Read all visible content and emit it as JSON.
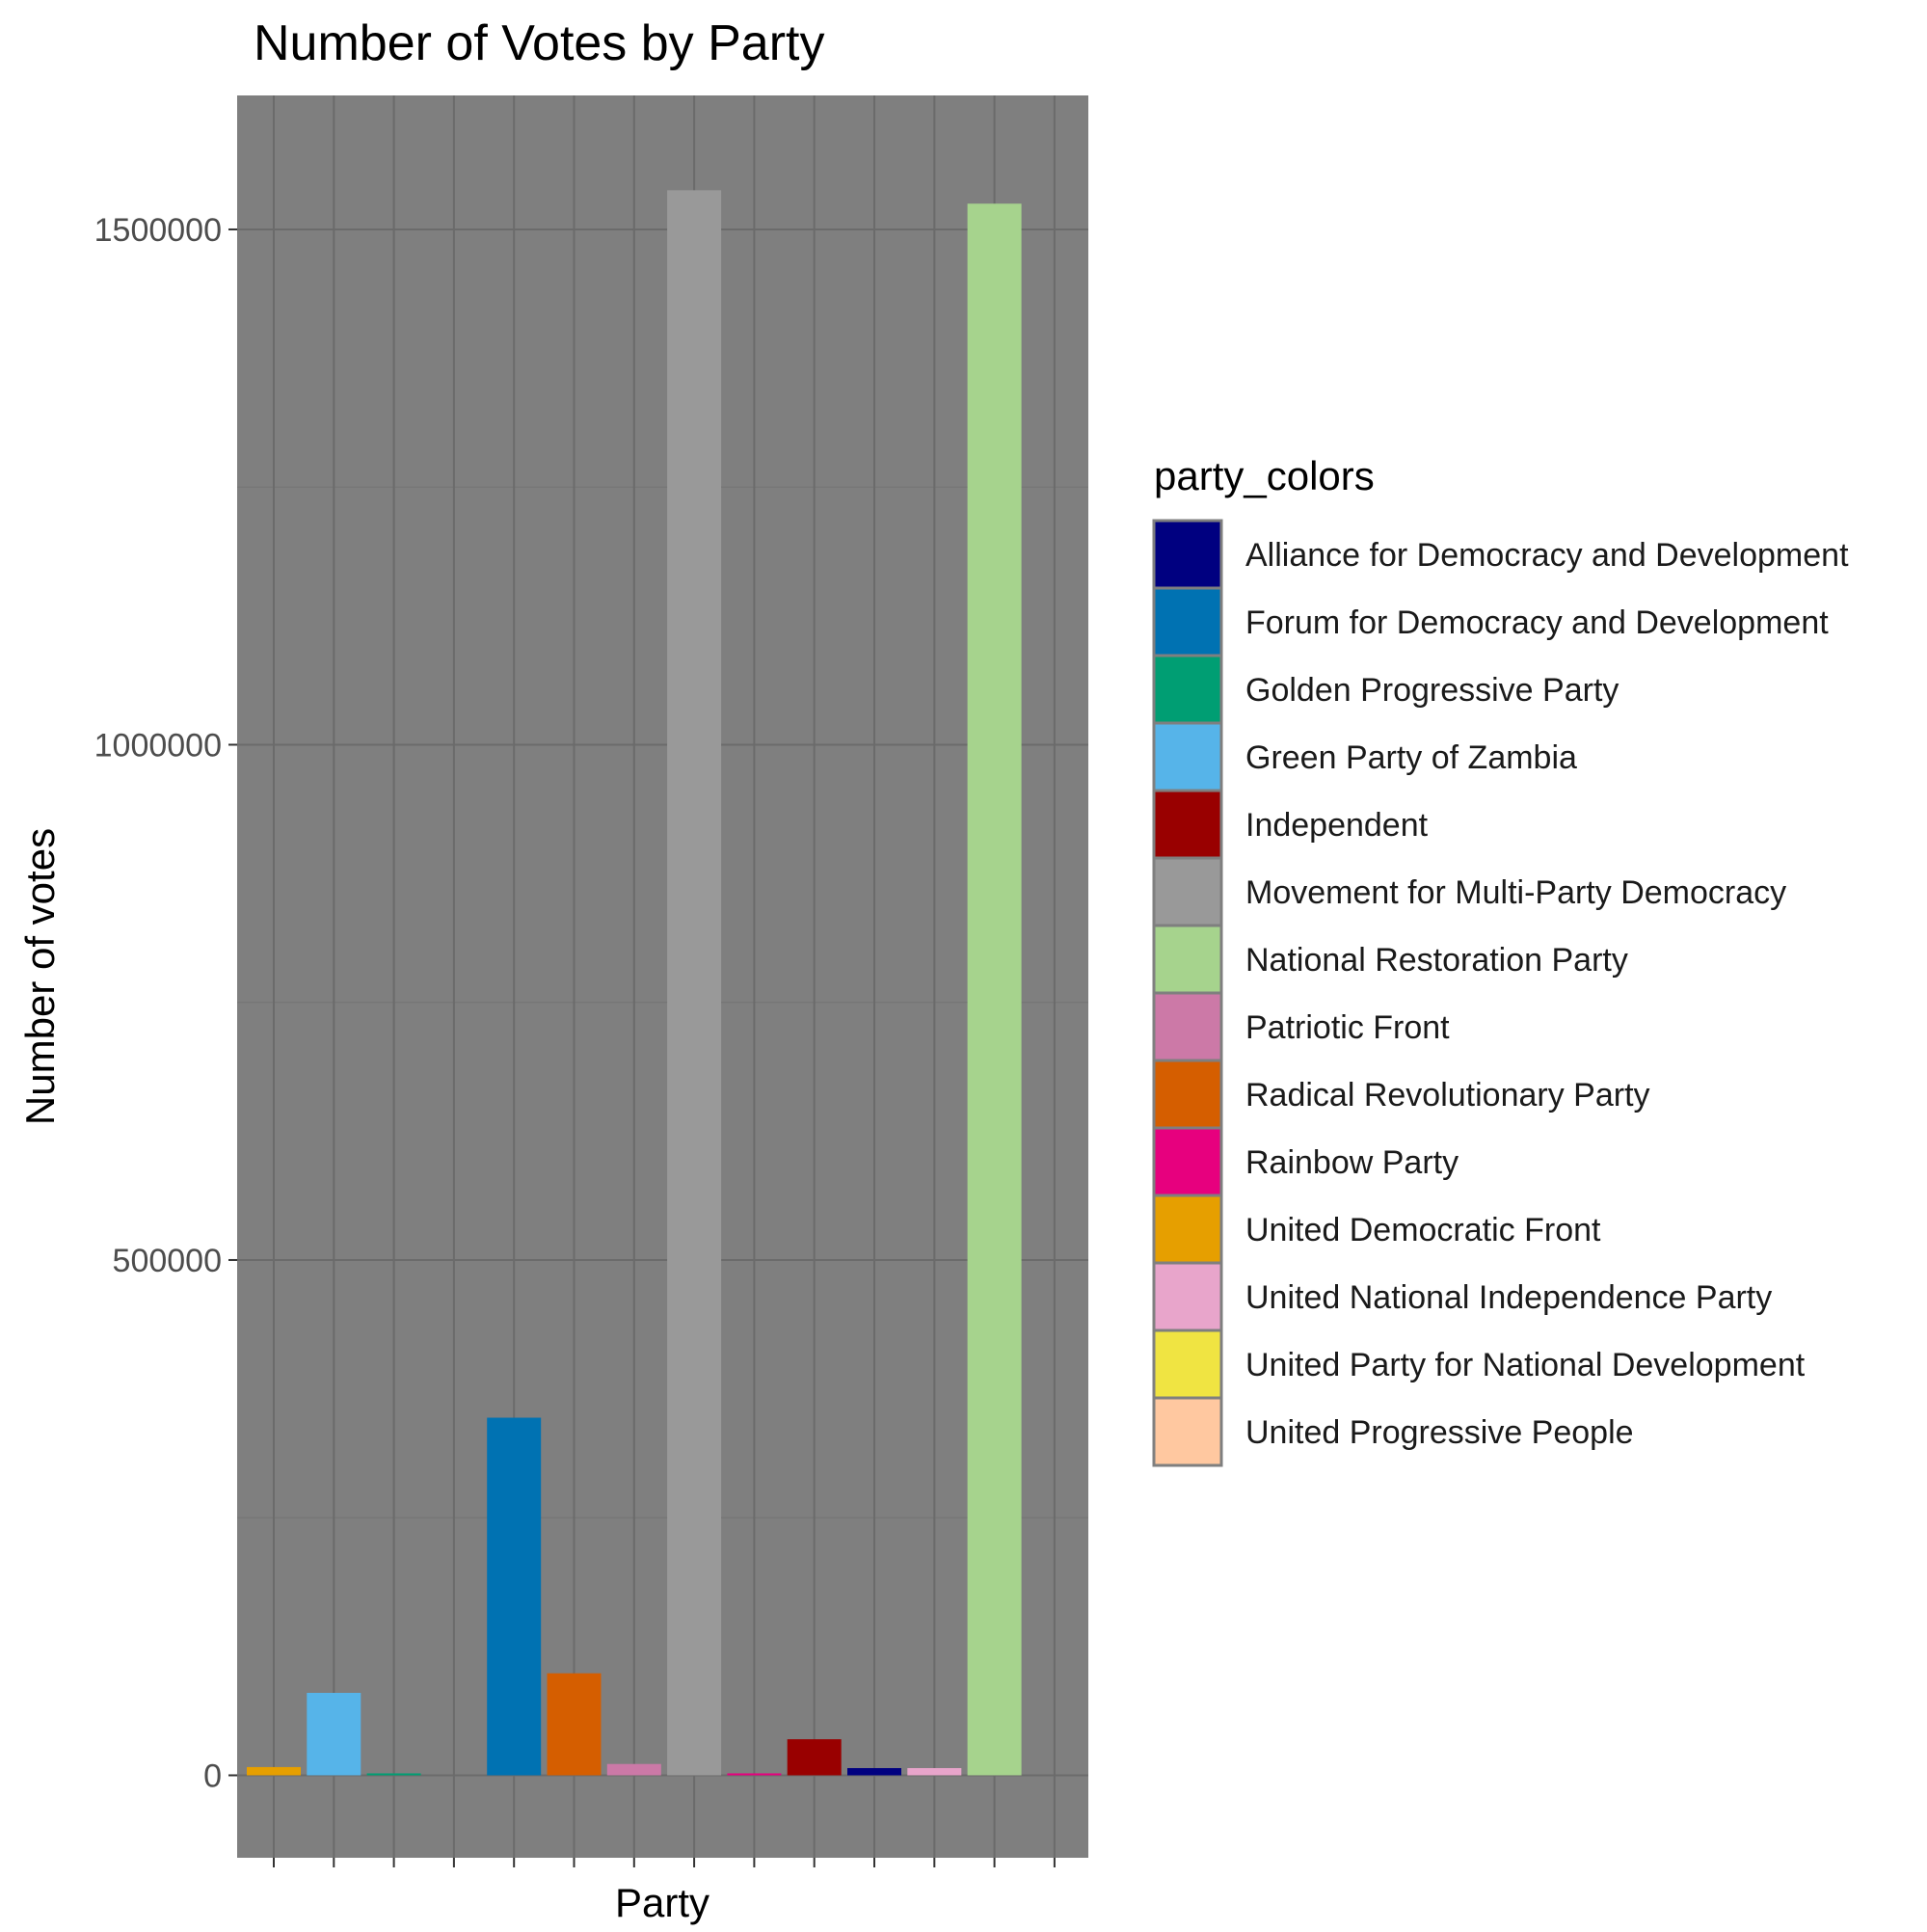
{
  "chart_data": {
    "type": "bar",
    "title": "Number of Votes by Party",
    "xlabel": "Party",
    "ylabel": "Number of votes",
    "ylim": [
      -80000,
      1630000
    ],
    "yticks": [
      0,
      500000,
      1000000,
      1500000
    ],
    "ytick_labels": [
      "0",
      "500000",
      "1000000",
      "1500000"
    ],
    "grid": true,
    "panel_background": "#7f7f7f",
    "x_tick_count": 14,
    "bars": [
      {
        "slot": 1,
        "party": "United Democratic Front",
        "value": 8000,
        "color": "#E69F00"
      },
      {
        "slot": 2,
        "party": "Green Party of Zambia",
        "value": 80000,
        "color": "#56B4E9"
      },
      {
        "slot": 3,
        "party": "Golden Progressive Party",
        "value": 1500,
        "color": "#009E73"
      },
      {
        "slot": 4,
        "party": "United Party for National Development",
        "value": 0,
        "color": "#F0E442"
      },
      {
        "slot": 5,
        "party": "Forum for Democracy and Development",
        "value": 347000,
        "color": "#0072B2"
      },
      {
        "slot": 6,
        "party": "Radical Revolutionary Party",
        "value": 99000,
        "color": "#D55E00"
      },
      {
        "slot": 7,
        "party": "Patriotic Front",
        "value": 11000,
        "color": "#CC79A7"
      },
      {
        "slot": 8,
        "party": "Movement for Multi-Party Democracy",
        "value": 1538000,
        "color": "#999999"
      },
      {
        "slot": 9,
        "party": "Rainbow Party",
        "value": 1500,
        "color": "#E7007E"
      },
      {
        "slot": 10,
        "party": "Independent",
        "value": 35000,
        "color": "#990000"
      },
      {
        "slot": 11,
        "party": "Alliance for Democracy and Development",
        "value": 7000,
        "color": "#000080"
      },
      {
        "slot": 12,
        "party": "United National Independence Party",
        "value": 7000,
        "color": "#E8A5CB"
      },
      {
        "slot": 13,
        "party": "National Restoration Party",
        "value": 1525000,
        "color": "#A6D38D"
      },
      {
        "slot": 14,
        "party": "United Progressive People",
        "value": 0,
        "color": "#FFC8A0"
      }
    ],
    "legend": {
      "title": "party_colors",
      "position": "right",
      "items": [
        {
          "label": "Alliance for Democracy and Development",
          "color": "#000080"
        },
        {
          "label": "Forum for Democracy and Development",
          "color": "#0072B2"
        },
        {
          "label": "Golden Progressive Party",
          "color": "#009E73"
        },
        {
          "label": "Green Party of Zambia",
          "color": "#56B4E9"
        },
        {
          "label": "Independent",
          "color": "#990000"
        },
        {
          "label": "Movement for Multi-Party Democracy",
          "color": "#999999"
        },
        {
          "label": "National Restoration Party",
          "color": "#A6D38D"
        },
        {
          "label": "Patriotic Front",
          "color": "#CC79A7"
        },
        {
          "label": "Radical Revolutionary Party",
          "color": "#D55E00"
        },
        {
          "label": "Rainbow Party",
          "color": "#E7007E"
        },
        {
          "label": "United Democratic Front",
          "color": "#E69F00"
        },
        {
          "label": "United National Independence Party",
          "color": "#E8A5CB"
        },
        {
          "label": "United Party for National Development",
          "color": "#F0E442"
        },
        {
          "label": "United Progressive People",
          "color": "#FFC8A0"
        }
      ]
    }
  }
}
